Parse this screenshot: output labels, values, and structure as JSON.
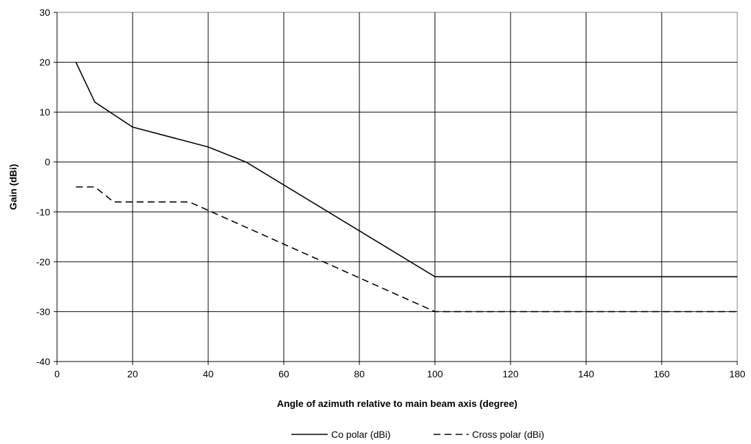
{
  "chart_data": {
    "type": "line",
    "title": "",
    "xlabel": "Angle of azimuth relative to main beam axis (degree)",
    "ylabel": "Gain (dBi)",
    "xlim": [
      0,
      180
    ],
    "ylim": [
      -40,
      30
    ],
    "x_ticks": [
      "0",
      "20",
      "40",
      "60",
      "80",
      "100",
      "120",
      "140",
      "160",
      "180"
    ],
    "y_ticks": [
      "-40",
      "-30",
      "-20",
      "-10",
      "0",
      "10",
      "20",
      "30"
    ],
    "grid": true,
    "legend_position": "bottom",
    "series": [
      {
        "name": "Co polar (dBi)",
        "style": "solid",
        "color": "#000000",
        "points": [
          [
            5,
            20
          ],
          [
            10,
            12
          ],
          [
            20,
            7
          ],
          [
            40,
            3
          ],
          [
            50,
            0
          ],
          [
            100,
            -23
          ],
          [
            180,
            -23
          ]
        ]
      },
      {
        "name": "Cross polar (dBi)",
        "style": "dashed",
        "color": "#000000",
        "points": [
          [
            5,
            -5
          ],
          [
            10,
            -5
          ],
          [
            15,
            -8
          ],
          [
            35,
            -8
          ],
          [
            100,
            -30
          ],
          [
            180,
            -30
          ]
        ]
      }
    ]
  }
}
